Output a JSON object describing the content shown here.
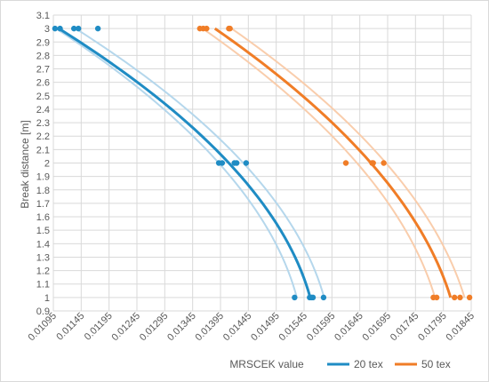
{
  "chart_data": {
    "type": "scatter",
    "xlabel": "MRSCEK value",
    "ylabel": "Break distance [m]",
    "xlim": [
      0.01095,
      0.01845
    ],
    "ylim": [
      0.9,
      3.1
    ],
    "x_ticks": [
      "0.01095",
      "0.01145",
      "0.01195",
      "0.01245",
      "0.01295",
      "0.01345",
      "0.01395",
      "0.01445",
      "0.01495",
      "0.01545",
      "0.01595",
      "0.01645",
      "0.01695",
      "0.01745",
      "0.01795",
      "0.01845"
    ],
    "y_ticks": [
      "0.9",
      "1",
      "1.1",
      "1.2",
      "1.3",
      "1.4",
      "1.5",
      "1.6",
      "1.7",
      "1.8",
      "1.9",
      "2",
      "2.1",
      "2.2",
      "2.3",
      "2.4",
      "2.5",
      "2.6",
      "2.7",
      "2.8",
      "2.9",
      "3",
      "3.1"
    ],
    "grid": true,
    "legend_position": "bottom-right",
    "series": [
      {
        "name": "20 tex",
        "color": "#1f8cc4",
        "light_color": "#b5d7ec",
        "points": [
          {
            "x": 0.01098,
            "y": 3
          },
          {
            "x": 0.01107,
            "y": 3
          },
          {
            "x": 0.01132,
            "y": 3
          },
          {
            "x": 0.0114,
            "y": 3
          },
          {
            "x": 0.01175,
            "y": 3
          },
          {
            "x": 0.01392,
            "y": 2
          },
          {
            "x": 0.01398,
            "y": 2
          },
          {
            "x": 0.0142,
            "y": 2
          },
          {
            "x": 0.01424,
            "y": 2
          },
          {
            "x": 0.01441,
            "y": 2
          },
          {
            "x": 0.01528,
            "y": 1
          },
          {
            "x": 0.01555,
            "y": 1
          },
          {
            "x": 0.01558,
            "y": 1
          },
          {
            "x": 0.01561,
            "y": 1
          },
          {
            "x": 0.0158,
            "y": 1
          }
        ],
        "fit": [
          {
            "x": 0.01105,
            "y": 3
          },
          {
            "x": 0.0141,
            "y": 2
          },
          {
            "x": 0.01556,
            "y": 1
          }
        ],
        "bounds": [
          [
            {
              "x": 0.011,
              "y": 3
            },
            {
              "x": 0.01392,
              "y": 2
            },
            {
              "x": 0.01532,
              "y": 1
            }
          ],
          [
            {
              "x": 0.01135,
              "y": 3
            },
            {
              "x": 0.01436,
              "y": 2
            },
            {
              "x": 0.01581,
              "y": 1
            }
          ]
        ]
      },
      {
        "name": "50 tex",
        "color": "#f07d27",
        "light_color": "#f9cdac",
        "points": [
          {
            "x": 0.01358,
            "y": 3
          },
          {
            "x": 0.01364,
            "y": 3
          },
          {
            "x": 0.0137,
            "y": 3
          },
          {
            "x": 0.0141,
            "y": 3
          },
          {
            "x": 0.01412,
            "y": 3
          },
          {
            "x": 0.0162,
            "y": 2
          },
          {
            "x": 0.01667,
            "y": 2
          },
          {
            "x": 0.01669,
            "y": 2
          },
          {
            "x": 0.01688,
            "y": 2
          },
          {
            "x": 0.01777,
            "y": 1
          },
          {
            "x": 0.01783,
            "y": 1
          },
          {
            "x": 0.01815,
            "y": 1
          },
          {
            "x": 0.01825,
            "y": 1
          },
          {
            "x": 0.01842,
            "y": 1
          }
        ],
        "fit": [
          {
            "x": 0.01385,
            "y": 3
          },
          {
            "x": 0.01665,
            "y": 2
          },
          {
            "x": 0.01808,
            "y": 1
          }
        ],
        "bounds": [
          [
            {
              "x": 0.01363,
              "y": 3
            },
            {
              "x": 0.0164,
              "y": 2
            },
            {
              "x": 0.0178,
              "y": 1
            }
          ],
          [
            {
              "x": 0.01415,
              "y": 3
            },
            {
              "x": 0.01692,
              "y": 2
            },
            {
              "x": 0.01833,
              "y": 1
            }
          ]
        ]
      }
    ]
  }
}
